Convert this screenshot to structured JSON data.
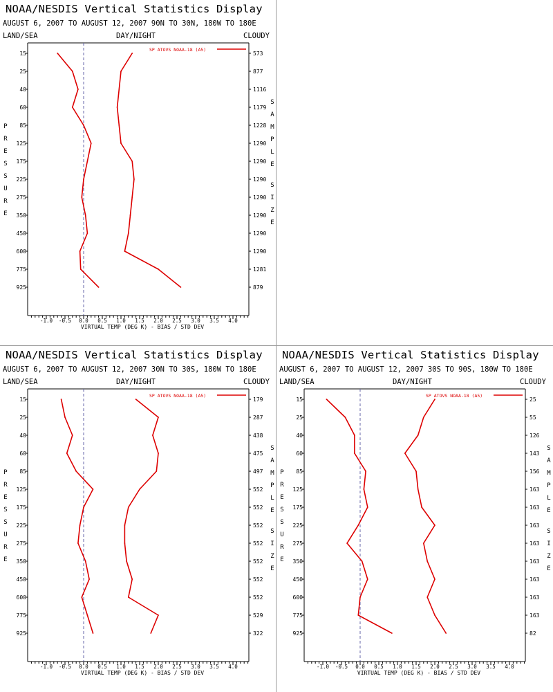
{
  "window": {
    "title": "NOAA/NESDIS Vertical Statistics Display"
  },
  "labels": {
    "left_header": "LAND/SEA",
    "center_header": "DAY/NIGHT",
    "right_header": "CLOUDY",
    "pressure_axis": "PRESSURE",
    "sample_axis": "SAMPLE SIZE",
    "x_axis": "VIRTUAL TEMP (DEG K) - BIAS / STD DEV",
    "legend": "SP ATOVS NOAA-18 (A5)"
  },
  "colors": {
    "series": "#dd0000",
    "axis": "#000000",
    "zero_line": "#6666aa"
  },
  "chart_data": [
    {
      "type": "line",
      "title": "NOAA/NESDIS Vertical Statistics Display",
      "subtitle": "AUGUST 6, 2007 TO AUGUST 12, 2007  90N TO 30N, 180W TO 180E",
      "xlabel": "VIRTUAL TEMP (DEG K) - BIAS / STD DEV",
      "ylabel": "PRESSURE",
      "xlim": [
        -1.5,
        4.5
      ],
      "x_ticks": [
        "-1.0",
        "-0.5",
        "0.0",
        "0.5",
        "1.0",
        "1.5",
        "2.0",
        "2.5",
        "3.0",
        "3.5",
        "4.0"
      ],
      "pressure_levels": [
        "15",
        "25",
        "40",
        "60",
        "85",
        "125",
        "175",
        "225",
        "275",
        "350",
        "450",
        "600",
        "775",
        "925"
      ],
      "sample_size": [
        "573",
        "877",
        "1116",
        "1179",
        "1228",
        "1290",
        "1290",
        "1290",
        "1290",
        "1290",
        "1290",
        "1290",
        "1281",
        "879"
      ],
      "legend": "SP ATOVS NOAA-18 (A5)",
      "series": [
        {
          "name": "SP ATOVS NOAA-18 (A5)",
          "values": [
            -0.7,
            -0.3,
            -0.15,
            -0.3,
            0.0,
            0.2,
            0.1,
            0.0,
            -0.05,
            0.05,
            0.1,
            -0.1,
            -0.08,
            0.4
          ]
        },
        {
          "values": [
            1.3,
            1.0,
            0.95,
            0.9,
            0.95,
            1.0,
            1.3,
            1.35,
            1.3,
            1.25,
            1.2,
            1.1,
            2.0,
            2.6
          ]
        }
      ]
    },
    {
      "type": "line",
      "title": "NOAA/NESDIS Vertical Statistics Display",
      "subtitle": "AUGUST 6, 2007 TO AUGUST 12, 2007  30N TO 30S, 180W TO 180E",
      "xlabel": "VIRTUAL TEMP (DEG K) - BIAS / STD DEV",
      "ylabel": "PRESSURE",
      "xlim": [
        -1.5,
        4.5
      ],
      "x_ticks": [
        "-1.0",
        "-0.5",
        "0.0",
        "0.5",
        "1.0",
        "1.5",
        "2.0",
        "2.5",
        "3.0",
        "3.5",
        "4.0"
      ],
      "pressure_levels": [
        "15",
        "25",
        "40",
        "60",
        "85",
        "125",
        "175",
        "225",
        "275",
        "350",
        "450",
        "600",
        "775",
        "925"
      ],
      "sample_size": [
        "179",
        "287",
        "438",
        "475",
        "497",
        "552",
        "552",
        "552",
        "552",
        "552",
        "552",
        "552",
        "529",
        "322"
      ],
      "legend": "SP ATOVS NOAA-18 (A5)",
      "series": [
        {
          "name": "SP ATOVS NOAA-18 (A5)",
          "values": [
            -0.6,
            -0.5,
            -0.3,
            -0.45,
            -0.2,
            0.25,
            0.0,
            -0.1,
            -0.15,
            0.05,
            0.15,
            -0.05,
            0.1,
            0.25
          ]
        },
        {
          "values": [
            1.4,
            2.0,
            1.85,
            2.0,
            1.95,
            1.5,
            1.2,
            1.1,
            1.1,
            1.15,
            1.3,
            1.2,
            2.0,
            1.8
          ]
        }
      ]
    },
    {
      "type": "line",
      "title": "NOAA/NESDIS Vertical Statistics Display",
      "subtitle": "AUGUST 6, 2007 TO AUGUST 12, 2007  30S TO 90S, 180W TO 180E",
      "xlabel": "VIRTUAL TEMP (DEG K) - BIAS / STD DEV",
      "ylabel": "PRESSURE",
      "xlim": [
        -1.5,
        4.5
      ],
      "x_ticks": [
        "-1.0",
        "-0.5",
        "0.0",
        "0.5",
        "1.0",
        "1.5",
        "2.0",
        "2.5",
        "3.0",
        "3.5",
        "4.0"
      ],
      "pressure_levels": [
        "15",
        "25",
        "40",
        "60",
        "85",
        "125",
        "175",
        "225",
        "275",
        "350",
        "450",
        "600",
        "775",
        "925"
      ],
      "sample_size": [
        "25",
        "55",
        "126",
        "143",
        "156",
        "163",
        "163",
        "163",
        "163",
        "163",
        "163",
        "163",
        "163",
        "82"
      ],
      "legend": "SP ATOVS NOAA-18 (A5)",
      "series": [
        {
          "name": "SP ATOVS NOAA-18 (A5)",
          "values": [
            -0.9,
            -0.4,
            -0.15,
            -0.15,
            0.15,
            0.1,
            0.2,
            -0.05,
            -0.35,
            0.05,
            0.2,
            0.0,
            -0.05,
            0.85
          ]
        },
        {
          "values": [
            2.0,
            1.7,
            1.55,
            1.2,
            1.5,
            1.55,
            1.65,
            2.0,
            1.7,
            1.8,
            2.0,
            1.8,
            2.0,
            2.3
          ]
        }
      ]
    }
  ]
}
